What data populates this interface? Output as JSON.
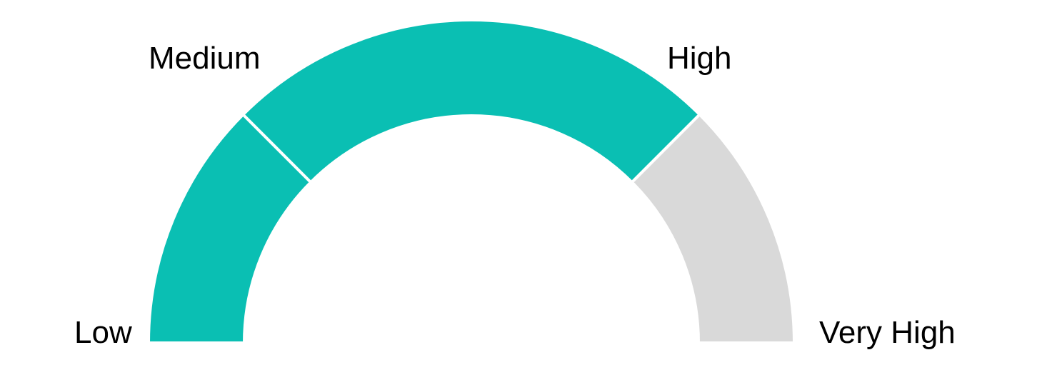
{
  "chart_data": {
    "type": "gauge",
    "segments": [
      {
        "from": 0,
        "to": 25,
        "filled": true
      },
      {
        "from": 25,
        "to": 75,
        "filled": true
      },
      {
        "from": 75,
        "to": 100,
        "filled": false
      }
    ],
    "labels": [
      "Low",
      "Medium",
      "High",
      "Very High"
    ],
    "value_percent": 75,
    "colors": {
      "filled": "#0ABFB3",
      "empty": "#D9D9D9",
      "separator": "#FFFFFF"
    }
  }
}
